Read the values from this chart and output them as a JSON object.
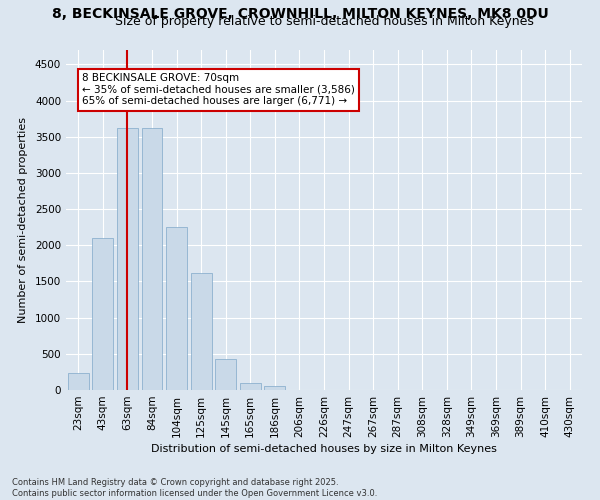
{
  "title_line1": "8, BECKINSALE GROVE, CROWNHILL, MILTON KEYNES, MK8 0DU",
  "title_line2": "Size of property relative to semi-detached houses in Milton Keynes",
  "xlabel": "Distribution of semi-detached houses by size in Milton Keynes",
  "ylabel": "Number of semi-detached properties",
  "footnote": "Contains HM Land Registry data © Crown copyright and database right 2025.\nContains public sector information licensed under the Open Government Licence v3.0.",
  "categories": [
    "23sqm",
    "43sqm",
    "63sqm",
    "84sqm",
    "104sqm",
    "125sqm",
    "145sqm",
    "165sqm",
    "186sqm",
    "206sqm",
    "226sqm",
    "247sqm",
    "267sqm",
    "287sqm",
    "308sqm",
    "328sqm",
    "349sqm",
    "369sqm",
    "389sqm",
    "410sqm",
    "430sqm"
  ],
  "values": [
    240,
    2100,
    3620,
    3620,
    2250,
    1620,
    430,
    100,
    50,
    0,
    0,
    0,
    0,
    0,
    0,
    0,
    0,
    0,
    0,
    0,
    0
  ],
  "bar_color": "#c9d9e8",
  "bar_edge_color": "#7fa8c9",
  "highlight_index": 2,
  "highlight_line_color": "#cc0000",
  "annotation_text": "8 BECKINSALE GROVE: 70sqm\n← 35% of semi-detached houses are smaller (3,586)\n65% of semi-detached houses are larger (6,771) →",
  "annotation_box_color": "#cc0000",
  "ylim": [
    0,
    4700
  ],
  "yticks": [
    0,
    500,
    1000,
    1500,
    2000,
    2500,
    3000,
    3500,
    4000,
    4500
  ],
  "bg_color": "#dce6f0",
  "plot_bg_color": "#dce6f0",
  "grid_color": "#ffffff",
  "title_fontsize": 10,
  "subtitle_fontsize": 9,
  "axis_label_fontsize": 8,
  "tick_fontsize": 7.5,
  "footnote_fontsize": 6,
  "annotation_fontsize": 7.5
}
